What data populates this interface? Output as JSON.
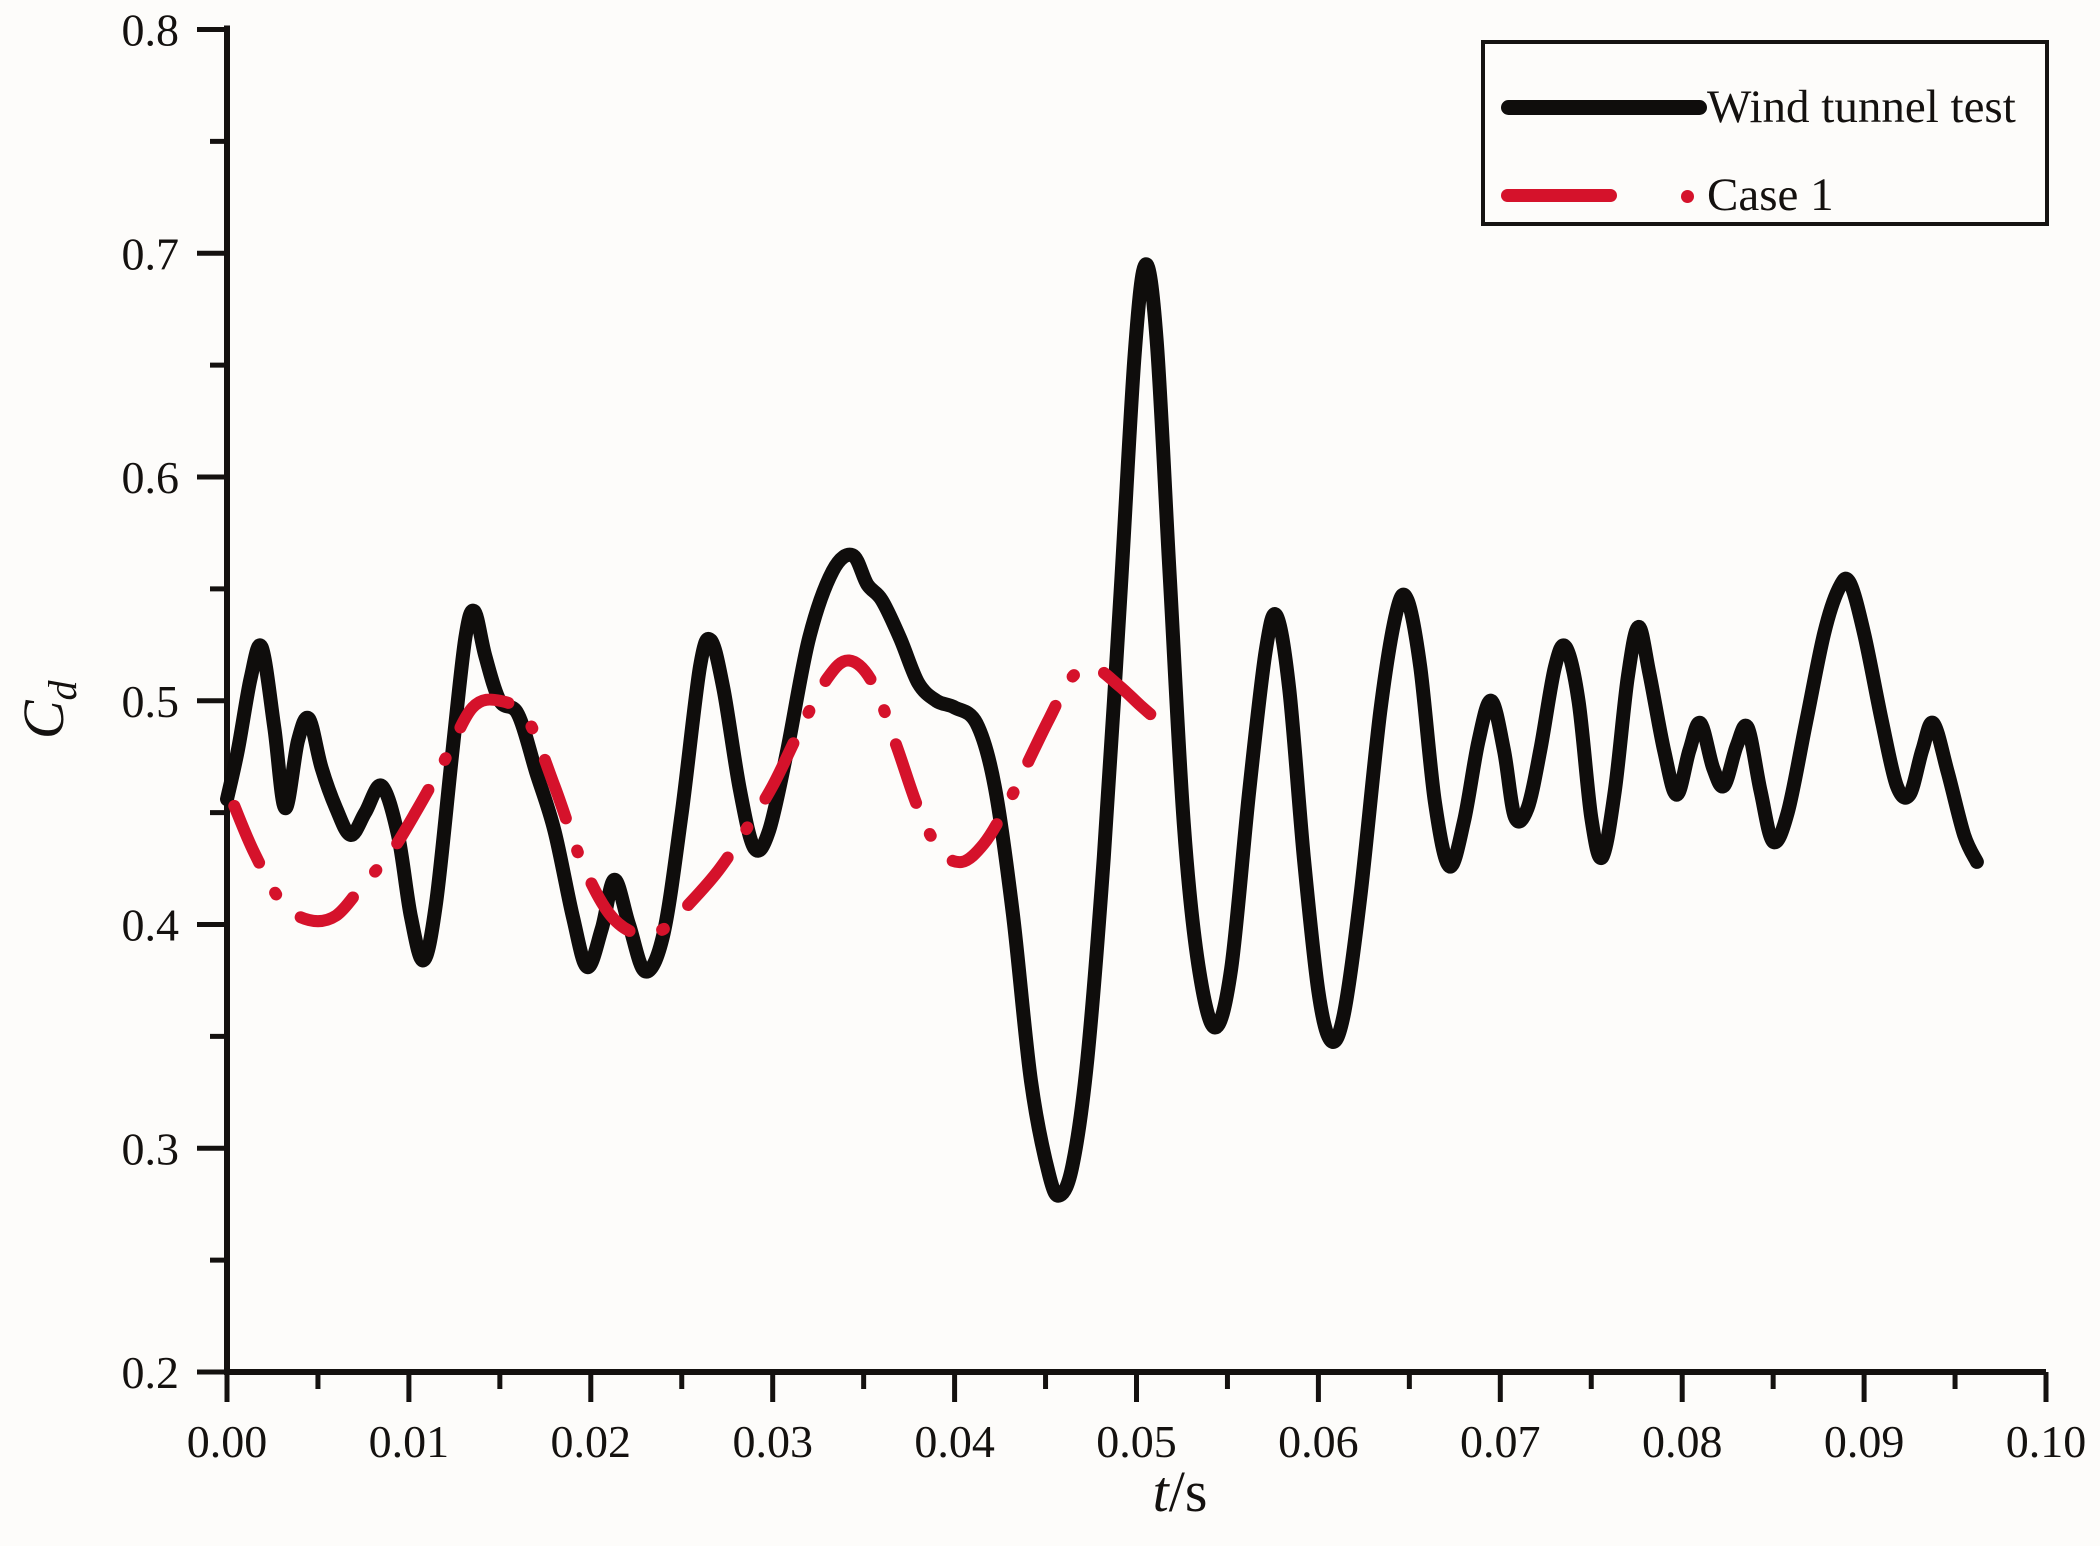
{
  "figure": {
    "background_color": "#fdfcfa",
    "plot_border": "L-shaped axes, no top/right frame, no gridlines"
  },
  "legend": {
    "position": "top-right",
    "items": [
      {
        "label": "Wind tunnel test",
        "color": "#0f0d0c",
        "line_style": "solid"
      },
      {
        "label": "Case 1",
        "color": "#d5122b",
        "line_style": "dash-dot"
      }
    ]
  },
  "axes": {
    "x": {
      "title_italic": "t",
      "title_rest": "/s",
      "min": 0.0,
      "max": 0.1,
      "major_step": 0.01,
      "minor_step": 0.005,
      "tick_labels": [
        "0.00",
        "0.01",
        "0.02",
        "0.03",
        "0.04",
        "0.05",
        "0.06",
        "0.07",
        "0.08",
        "0.09",
        "0.10"
      ],
      "ticks_direction": "out-down"
    },
    "y": {
      "title_main": "C",
      "title_sub": "d",
      "min": 0.2,
      "max": 0.8,
      "major_step": 0.1,
      "minor_step": 0.05,
      "tick_labels": [
        "0.2",
        "0.3",
        "0.4",
        "0.5",
        "0.6",
        "0.7",
        "0.8"
      ],
      "ticks_direction": "out-left"
    }
  },
  "chart_data": {
    "type": "line",
    "title": "",
    "xlabel": "t/s",
    "ylabel": "Cd",
    "xlim": [
      0.0,
      0.1
    ],
    "ylim": [
      0.2,
      0.8
    ],
    "grid": false,
    "legend_position": "top-right",
    "series": [
      {
        "name": "Wind tunnel test",
        "color": "#0f0d0c",
        "stroke_width": 14,
        "dash": null,
        "points": [
          [
            0.0,
            0.456
          ],
          [
            0.0006,
            0.478
          ],
          [
            0.0013,
            0.51
          ],
          [
            0.0019,
            0.524
          ],
          [
            0.0026,
            0.488
          ],
          [
            0.0032,
            0.452
          ],
          [
            0.0039,
            0.482
          ],
          [
            0.0045,
            0.492
          ],
          [
            0.0052,
            0.47
          ],
          [
            0.006,
            0.452
          ],
          [
            0.0068,
            0.44
          ],
          [
            0.0076,
            0.45
          ],
          [
            0.0085,
            0.462
          ],
          [
            0.0094,
            0.44
          ],
          [
            0.0101,
            0.404
          ],
          [
            0.0108,
            0.384
          ],
          [
            0.0115,
            0.41
          ],
          [
            0.0124,
            0.478
          ],
          [
            0.0131,
            0.528
          ],
          [
            0.0136,
            0.54
          ],
          [
            0.0142,
            0.52
          ],
          [
            0.015,
            0.5
          ],
          [
            0.016,
            0.494
          ],
          [
            0.017,
            0.468
          ],
          [
            0.018,
            0.442
          ],
          [
            0.019,
            0.404
          ],
          [
            0.0198,
            0.381
          ],
          [
            0.0206,
            0.398
          ],
          [
            0.0213,
            0.42
          ],
          [
            0.0221,
            0.4
          ],
          [
            0.023,
            0.379
          ],
          [
            0.024,
            0.396
          ],
          [
            0.025,
            0.45
          ],
          [
            0.026,
            0.515
          ],
          [
            0.0266,
            0.527
          ],
          [
            0.0273,
            0.505
          ],
          [
            0.0282,
            0.46
          ],
          [
            0.029,
            0.434
          ],
          [
            0.0298,
            0.442
          ],
          [
            0.0308,
            0.478
          ],
          [
            0.032,
            0.528
          ],
          [
            0.0333,
            0.558
          ],
          [
            0.0344,
            0.565
          ],
          [
            0.0352,
            0.552
          ],
          [
            0.036,
            0.545
          ],
          [
            0.037,
            0.528
          ],
          [
            0.038,
            0.508
          ],
          [
            0.039,
            0.5
          ],
          [
            0.04,
            0.497
          ],
          [
            0.0412,
            0.49
          ],
          [
            0.0422,
            0.462
          ],
          [
            0.0432,
            0.405
          ],
          [
            0.0442,
            0.33
          ],
          [
            0.0452,
            0.288
          ],
          [
            0.0458,
            0.279
          ],
          [
            0.0465,
            0.293
          ],
          [
            0.0473,
            0.34
          ],
          [
            0.0482,
            0.43
          ],
          [
            0.0491,
            0.545
          ],
          [
            0.0499,
            0.655
          ],
          [
            0.0505,
            0.695
          ],
          [
            0.0511,
            0.662
          ],
          [
            0.0518,
            0.56
          ],
          [
            0.0526,
            0.445
          ],
          [
            0.0534,
            0.382
          ],
          [
            0.0543,
            0.354
          ],
          [
            0.0552,
            0.38
          ],
          [
            0.0562,
            0.46
          ],
          [
            0.0571,
            0.522
          ],
          [
            0.0577,
            0.538
          ],
          [
            0.0584,
            0.505
          ],
          [
            0.0592,
            0.43
          ],
          [
            0.06,
            0.37
          ],
          [
            0.0607,
            0.348
          ],
          [
            0.0614,
            0.36
          ],
          [
            0.0623,
            0.412
          ],
          [
            0.0634,
            0.495
          ],
          [
            0.0643,
            0.54
          ],
          [
            0.0649,
            0.545
          ],
          [
            0.0656,
            0.515
          ],
          [
            0.0664,
            0.455
          ],
          [
            0.0672,
            0.426
          ],
          [
            0.068,
            0.446
          ],
          [
            0.0688,
            0.482
          ],
          [
            0.0695,
            0.5
          ],
          [
            0.0702,
            0.478
          ],
          [
            0.0708,
            0.448
          ],
          [
            0.0715,
            0.452
          ],
          [
            0.0722,
            0.478
          ],
          [
            0.073,
            0.515
          ],
          [
            0.0736,
            0.524
          ],
          [
            0.0743,
            0.5
          ],
          [
            0.075,
            0.448
          ],
          [
            0.0756,
            0.43
          ],
          [
            0.0763,
            0.46
          ],
          [
            0.077,
            0.51
          ],
          [
            0.0776,
            0.533
          ],
          [
            0.0782,
            0.512
          ],
          [
            0.079,
            0.478
          ],
          [
            0.0797,
            0.458
          ],
          [
            0.0804,
            0.478
          ],
          [
            0.081,
            0.49
          ],
          [
            0.0817,
            0.47
          ],
          [
            0.0823,
            0.462
          ],
          [
            0.083,
            0.48
          ],
          [
            0.0836,
            0.488
          ],
          [
            0.0843,
            0.46
          ],
          [
            0.085,
            0.437
          ],
          [
            0.0858,
            0.45
          ],
          [
            0.0868,
            0.49
          ],
          [
            0.0878,
            0.53
          ],
          [
            0.0886,
            0.55
          ],
          [
            0.0892,
            0.553
          ],
          [
            0.09,
            0.53
          ],
          [
            0.091,
            0.49
          ],
          [
            0.0918,
            0.462
          ],
          [
            0.0925,
            0.458
          ],
          [
            0.0932,
            0.478
          ],
          [
            0.0938,
            0.49
          ],
          [
            0.0946,
            0.468
          ],
          [
            0.0955,
            0.44
          ],
          [
            0.0962,
            0.428
          ]
        ]
      },
      {
        "name": "Case 1",
        "color": "#d5122b",
        "stroke_width": 12,
        "dash": "62 34 2 34",
        "points": [
          [
            0.0004,
            0.453
          ],
          [
            0.0015,
            0.432
          ],
          [
            0.003,
            0.41
          ],
          [
            0.0045,
            0.402
          ],
          [
            0.006,
            0.404
          ],
          [
            0.0075,
            0.418
          ],
          [
            0.009,
            0.432
          ],
          [
            0.0105,
            0.452
          ],
          [
            0.012,
            0.474
          ],
          [
            0.0135,
            0.497
          ],
          [
            0.015,
            0.5
          ],
          [
            0.0165,
            0.492
          ],
          [
            0.018,
            0.462
          ],
          [
            0.0195,
            0.428
          ],
          [
            0.021,
            0.405
          ],
          [
            0.0225,
            0.396
          ],
          [
            0.024,
            0.398
          ],
          [
            0.0255,
            0.41
          ],
          [
            0.027,
            0.424
          ],
          [
            0.0285,
            0.442
          ],
          [
            0.03,
            0.462
          ],
          [
            0.0315,
            0.487
          ],
          [
            0.033,
            0.51
          ],
          [
            0.0342,
            0.518
          ],
          [
            0.0355,
            0.508
          ],
          [
            0.0368,
            0.48
          ],
          [
            0.038,
            0.452
          ],
          [
            0.0392,
            0.433
          ],
          [
            0.0404,
            0.428
          ],
          [
            0.0416,
            0.436
          ],
          [
            0.0428,
            0.452
          ],
          [
            0.044,
            0.472
          ],
          [
            0.0452,
            0.492
          ],
          [
            0.0464,
            0.51
          ],
          [
            0.0476,
            0.515
          ],
          [
            0.049,
            0.507
          ],
          [
            0.0502,
            0.498
          ],
          [
            0.0512,
            0.491
          ]
        ]
      }
    ]
  }
}
